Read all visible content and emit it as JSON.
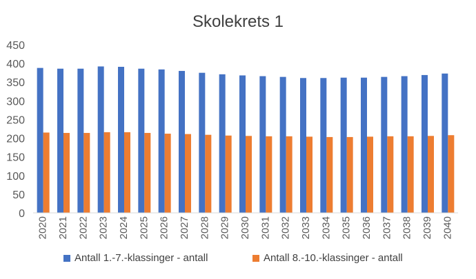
{
  "chart_data": {
    "type": "bar",
    "title": "Skolekrets 1",
    "xlabel": "",
    "ylabel": "",
    "ylim": [
      0,
      450
    ],
    "yticks": [
      0,
      50,
      100,
      150,
      200,
      250,
      300,
      350,
      400,
      450
    ],
    "grid": false,
    "legend_position": "bottom",
    "categories": [
      "2020",
      "2021",
      "2022",
      "2023",
      "2024",
      "2025",
      "2026",
      "2027",
      "2028",
      "2029",
      "2030",
      "2031",
      "2032",
      "2033",
      "2034",
      "2035",
      "2036",
      "2037",
      "2038",
      "2039",
      "2040"
    ],
    "series": [
      {
        "name": "Antall 1.-7.-klassinger - antall",
        "color": "#4472C4",
        "values": [
          388,
          386,
          386,
          392,
          391,
          386,
          384,
          380,
          375,
          371,
          368,
          366,
          364,
          361,
          361,
          362,
          362,
          364,
          366,
          369,
          373
        ]
      },
      {
        "name": "Antall 8.-10.-klassinger - antall",
        "color": "#ED7D31",
        "values": [
          215,
          214,
          214,
          216,
          216,
          214,
          212,
          211,
          209,
          207,
          206,
          205,
          205,
          204,
          203,
          203,
          204,
          205,
          205,
          206,
          208
        ]
      }
    ]
  }
}
